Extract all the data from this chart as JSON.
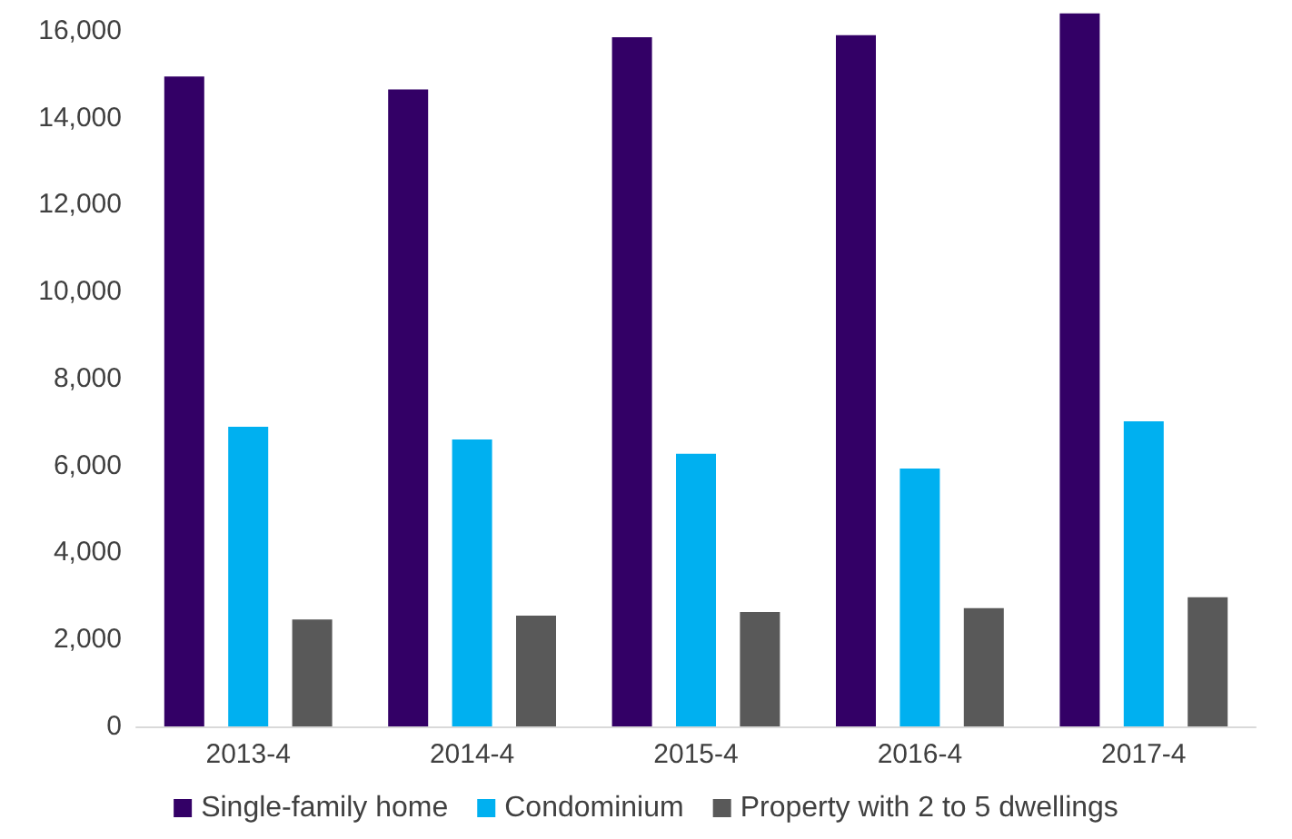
{
  "chart_data": {
    "type": "bar",
    "categories": [
      "2013-4",
      "2014-4",
      "2015-4",
      "2016-4",
      "2017-4"
    ],
    "series": [
      {
        "name": "Single-family home",
        "color": "#330066",
        "values": [
          14950,
          14650,
          15850,
          15900,
          16400
        ]
      },
      {
        "name": "Condominium",
        "color": "#00b0f0",
        "values": [
          6890,
          6600,
          6270,
          5930,
          7020
        ]
      },
      {
        "name": "Property with 2 to 5 dwellings",
        "color": "#595959",
        "values": [
          2460,
          2550,
          2630,
          2720,
          2970
        ]
      }
    ],
    "ylim": [
      0,
      16500
    ],
    "yticks": [
      0,
      {
        "value": 2000,
        "label": "2,000"
      },
      {
        "value": 4000,
        "label": "4,000"
      },
      {
        "value": 6000,
        "label": "6,000"
      },
      {
        "value": 8000,
        "label": "8,000"
      },
      {
        "value": 10000,
        "label": "10,000"
      },
      {
        "value": 12000,
        "label": "12,000"
      },
      {
        "value": 14000,
        "label": "14,000"
      },
      {
        "value": 16000,
        "label": "16,000"
      }
    ],
    "grid": false,
    "legend": "bottom"
  }
}
